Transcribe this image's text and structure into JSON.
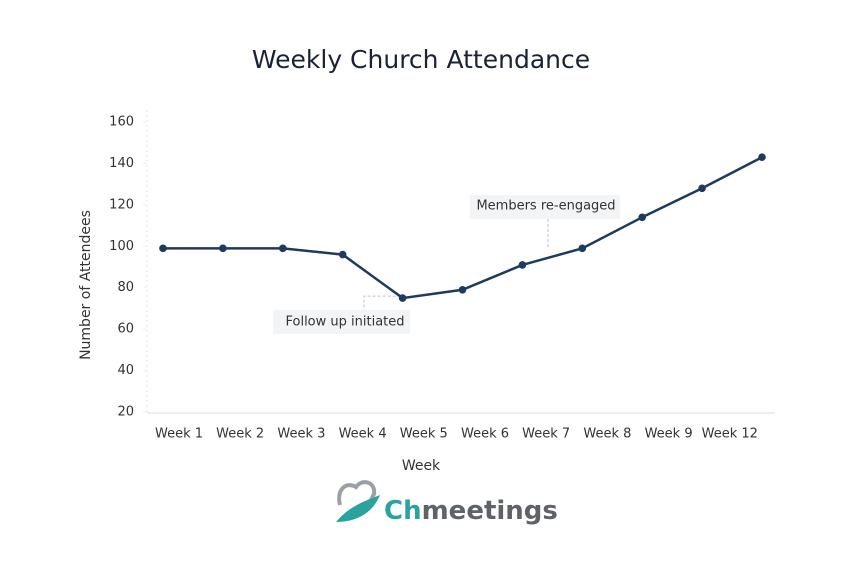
{
  "chart_data": {
    "type": "line",
    "title": "Weekly Church Attendance",
    "x_label": "Week",
    "y_label": "Number of Attendees",
    "categories": [
      "Week 1",
      "Week 2",
      "Week 3",
      "Week 4",
      "Week 5",
      "Week 6",
      "Week 7",
      "Week 8",
      "Week 9",
      "Week 12",
      null
    ],
    "series": [
      {
        "name": "Attendance",
        "color": "#1e3a5f",
        "values": [
          99,
          99,
          99,
          96,
          75,
          79,
          91,
          99,
          114,
          128,
          143
        ]
      }
    ],
    "ylim": [
      20,
      160
    ],
    "yticks": [
      20,
      40,
      60,
      80,
      100,
      120,
      140,
      160
    ],
    "annotations": [
      "Follow up initiated",
      "Members re-engaged"
    ]
  },
  "brand": {
    "prefix": "Ch",
    "suffix": "meetings"
  }
}
